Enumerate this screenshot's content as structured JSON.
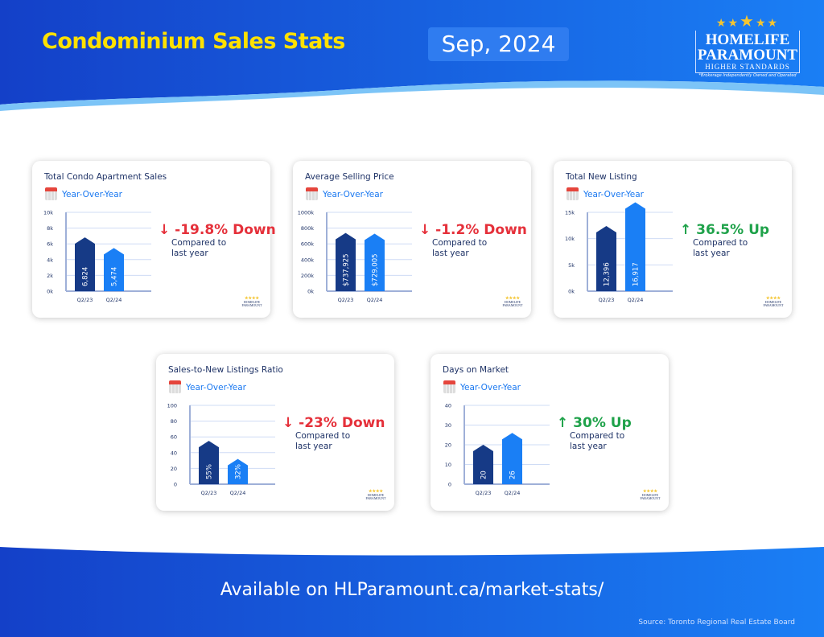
{
  "header": {
    "title": "Condominium Sales Stats",
    "date": "Sep, 2024"
  },
  "logo": {
    "line1": "HOMELIFE",
    "line2": "PARAMOUNT",
    "tagline": "HIGHER STANDARDS",
    "note": "*Brokerage Independently Owned and Operated"
  },
  "cards": [
    {
      "title": "Total Condo Apartment Sales",
      "period": "Year-Over-Year",
      "change": "-19.8% Down",
      "direction": "down",
      "compare": "Compared to last year",
      "chart_data": {
        "type": "bar",
        "categories": [
          "Q2/23",
          "Q2/24"
        ],
        "values": [
          6824,
          5474
        ],
        "labels": [
          "6,824",
          "5,474"
        ],
        "ylim": [
          0,
          10000
        ],
        "yticks": [
          "0k",
          "2k",
          "4k",
          "6k",
          "8k",
          "10k"
        ]
      }
    },
    {
      "title": "Average Selling Price",
      "period": "Year-Over-Year",
      "change": "-1.2% Down",
      "direction": "down",
      "compare": "Compared to last year",
      "chart_data": {
        "type": "bar",
        "categories": [
          "Q2/23",
          "Q2/24"
        ],
        "values": [
          737925,
          729005
        ],
        "labels": [
          "$737,925",
          "$729,005"
        ],
        "ylim": [
          0,
          1000000
        ],
        "yticks": [
          "0k",
          "200k",
          "400k",
          "600k",
          "800k",
          "1000k"
        ]
      }
    },
    {
      "title": "Total New Listing",
      "period": "Year-Over-Year",
      "change": "36.5% Up",
      "direction": "up",
      "compare": "Compared to last year",
      "chart_data": {
        "type": "bar",
        "categories": [
          "Q2/23",
          "Q2/24"
        ],
        "values": [
          12396,
          16917
        ],
        "labels": [
          "12,396",
          "16,917"
        ],
        "ylim": [
          0,
          15000
        ],
        "yticks": [
          "0k",
          "5k",
          "10k",
          "15k"
        ]
      }
    },
    {
      "title": "Sales-to-New Listings Ratio",
      "period": "Year-Over-Year",
      "change": "-23% Down",
      "direction": "down",
      "compare": "Compared to last year",
      "chart_data": {
        "type": "bar",
        "categories": [
          "Q2/23",
          "Q2/24"
        ],
        "values": [
          55,
          32
        ],
        "labels": [
          "55%",
          "32%"
        ],
        "ylim": [
          0,
          100
        ],
        "yticks": [
          "0",
          "20",
          "40",
          "60",
          "80",
          "100"
        ]
      }
    },
    {
      "title": "Days on Market",
      "period": "Year-Over-Year",
      "change": "30% Up",
      "direction": "up",
      "compare": "Compared to last year",
      "chart_data": {
        "type": "bar",
        "categories": [
          "Q2/23",
          "Q2/24"
        ],
        "values": [
          20,
          26
        ],
        "labels": [
          "20",
          "26"
        ],
        "ylim": [
          0,
          40
        ],
        "yticks": [
          "0",
          "10",
          "20",
          "30",
          "40"
        ]
      }
    }
  ],
  "colors": {
    "bar1": "#163a86",
    "bar2": "#1a7ff5",
    "down": "#e5303a",
    "up": "#1fa24a",
    "navy": "#1e3266"
  },
  "footer": {
    "text": "Available on HLParamount.ca/market-stats/",
    "source": "Source: Toronto Regional Real Estate Board"
  }
}
